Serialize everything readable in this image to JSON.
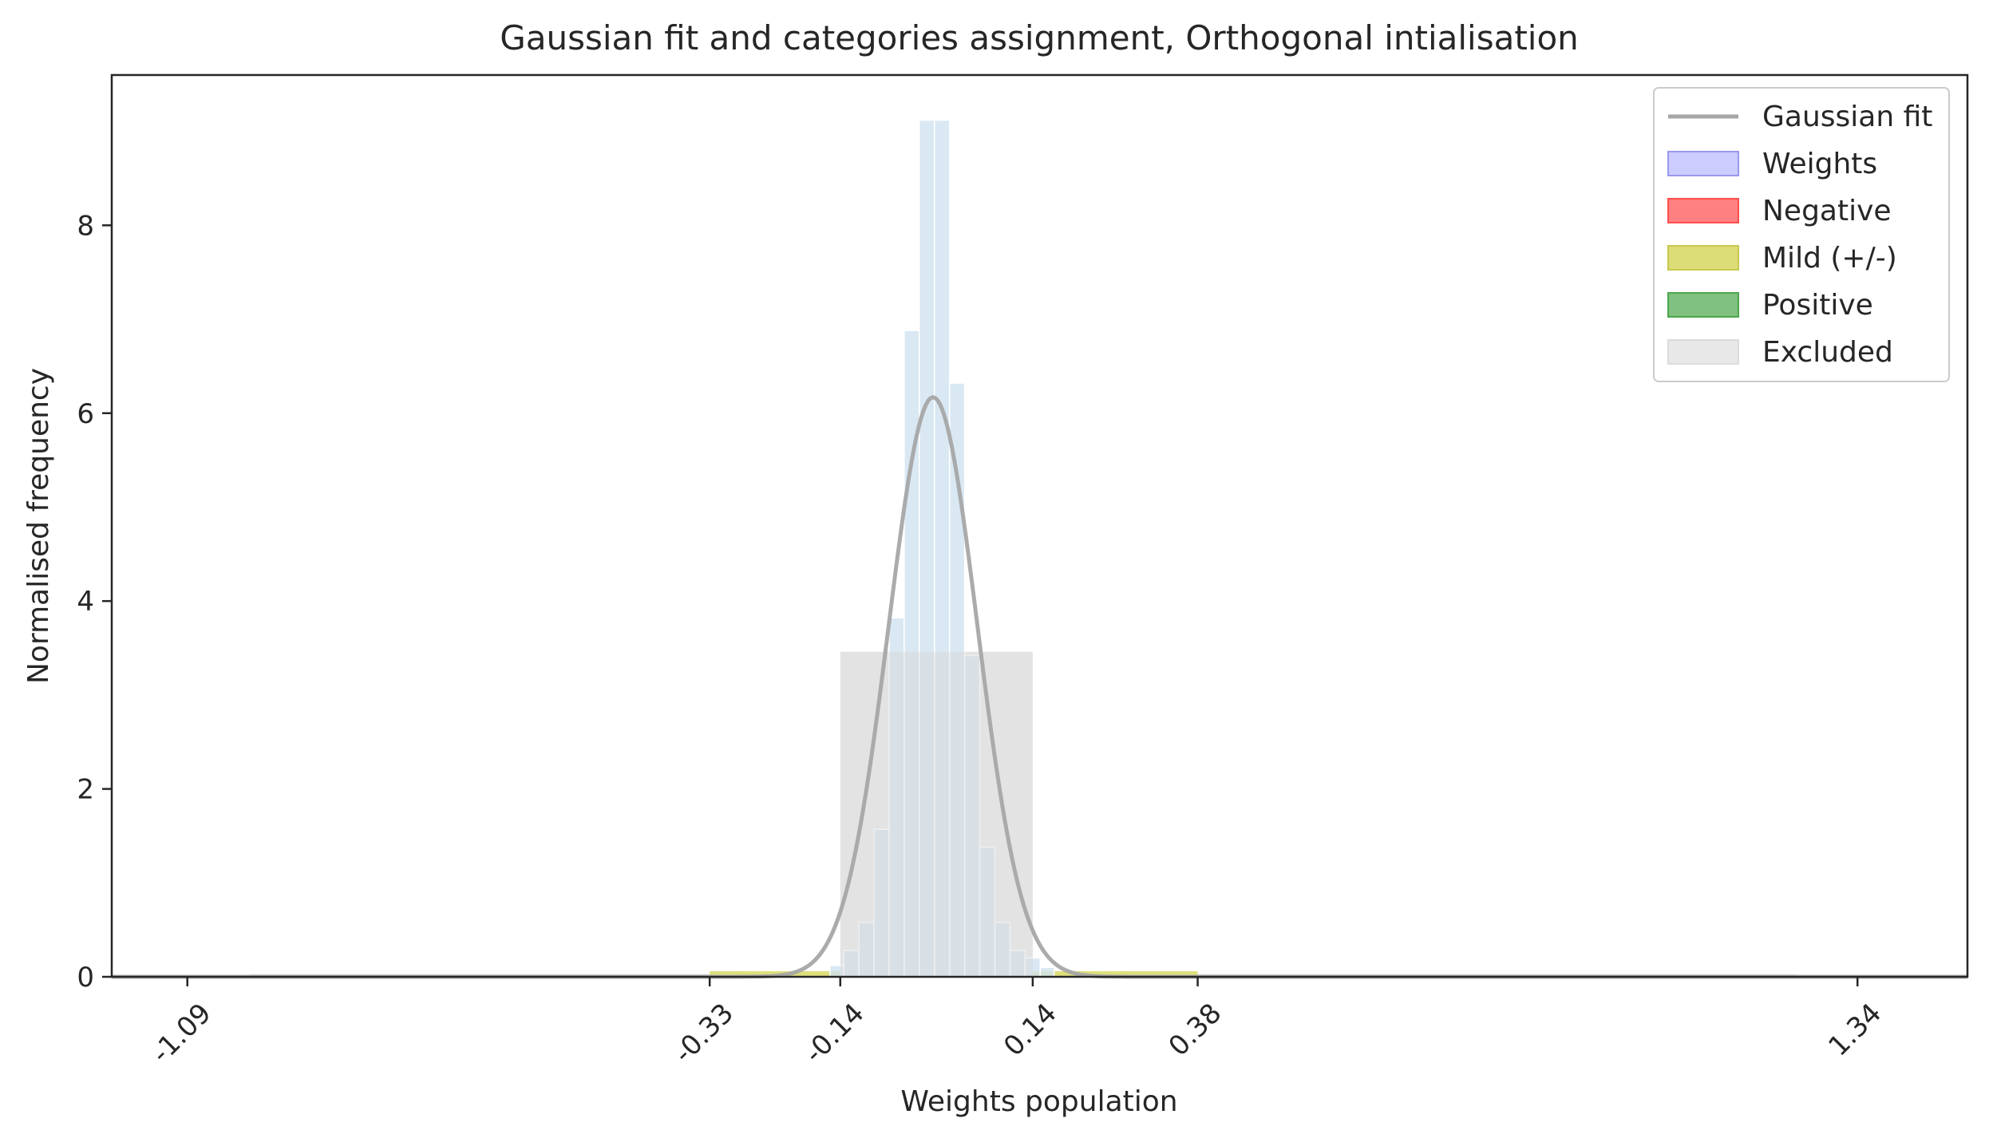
{
  "chart_data": {
    "type": "bar",
    "title": "Gaussian fit and categories assignment, Orthogonal intialisation",
    "xlabel": "Weights population",
    "ylabel": "Normalised frequency",
    "xlim": [
      -1.2,
      1.5
    ],
    "ylim": [
      0,
      9.6
    ],
    "x_ticks": [
      -1.09,
      -0.33,
      -0.14,
      0.14,
      0.38,
      1.34
    ],
    "x_tick_labels": [
      "-1.09",
      "-0.33",
      "-0.14",
      "0.14",
      "0.38",
      "1.34"
    ],
    "y_ticks": [
      0,
      2,
      4,
      6,
      8
    ],
    "y_tick_labels": [
      "0",
      "2",
      "4",
      "6",
      "8"
    ],
    "x_tick_rotation": 45,
    "grid": false,
    "legend_position": "top-right",
    "legend": [
      {
        "label": "Gaussian fit",
        "kind": "line",
        "color": "#a6a6a6"
      },
      {
        "label": "Weights",
        "kind": "patch",
        "color": "#ccccff",
        "edge": "#9999ee"
      },
      {
        "label": "Negative",
        "kind": "patch",
        "color": "#ff8080",
        "edge": "#ff4d4d"
      },
      {
        "label": "Mild (+/-)",
        "kind": "patch",
        "color": "#dddd77",
        "edge": "#c8c850"
      },
      {
        "label": "Positive",
        "kind": "patch",
        "color": "#80c080",
        "edge": "#4ca64c"
      },
      {
        "label": "Excluded",
        "kind": "patch",
        "color": "#e8e8e8",
        "edge": "#dcdcdc"
      }
    ],
    "series": [
      {
        "name": "Weights",
        "kind": "histogram",
        "color": "#cfe2f0",
        "bins": [
          {
            "x0": -0.155,
            "x1": -0.135,
            "y": 0.12
          },
          {
            "x0": -0.135,
            "x1": -0.113,
            "y": 0.28
          },
          {
            "x0": -0.113,
            "x1": -0.091,
            "y": 0.58
          },
          {
            "x0": -0.091,
            "x1": -0.069,
            "y": 1.57
          },
          {
            "x0": -0.069,
            "x1": -0.047,
            "y": 3.82
          },
          {
            "x0": -0.047,
            "x1": -0.025,
            "y": 6.88
          },
          {
            "x0": -0.025,
            "x1": -0.003,
            "y": 9.12
          },
          {
            "x0": -0.003,
            "x1": 0.019,
            "y": 9.12
          },
          {
            "x0": 0.019,
            "x1": 0.041,
            "y": 6.32
          },
          {
            "x0": 0.041,
            "x1": 0.063,
            "y": 3.42
          },
          {
            "x0": 0.063,
            "x1": 0.085,
            "y": 1.38
          },
          {
            "x0": 0.085,
            "x1": 0.107,
            "y": 0.58
          },
          {
            "x0": 0.107,
            "x1": 0.129,
            "y": 0.28
          },
          {
            "x0": 0.129,
            "x1": 0.151,
            "y": 0.2
          },
          {
            "x0": 0.151,
            "x1": 0.171,
            "y": 0.1
          }
        ]
      },
      {
        "name": "Excluded",
        "kind": "band",
        "color": "#e8e8e8",
        "segments": [
          {
            "x0": -0.14,
            "x1": 0.14,
            "y": 3.46
          },
          {
            "x0": -1.0,
            "x1": 1.25,
            "y": 0.03
          }
        ]
      },
      {
        "name": "Mild (+/-)",
        "kind": "band",
        "color": "#dddd77",
        "segments": [
          {
            "x0": -0.33,
            "x1": -0.14,
            "y": 0.06
          },
          {
            "x0": 0.14,
            "x1": 0.38,
            "y": 0.06
          }
        ]
      },
      {
        "name": "Gaussian fit",
        "kind": "gaussian",
        "color": "#a6a6a6",
        "mu": -0.005,
        "sigma": 0.0645,
        "peak": 6.17,
        "x_range": [
          -1.2,
          1.5
        ]
      }
    ]
  }
}
